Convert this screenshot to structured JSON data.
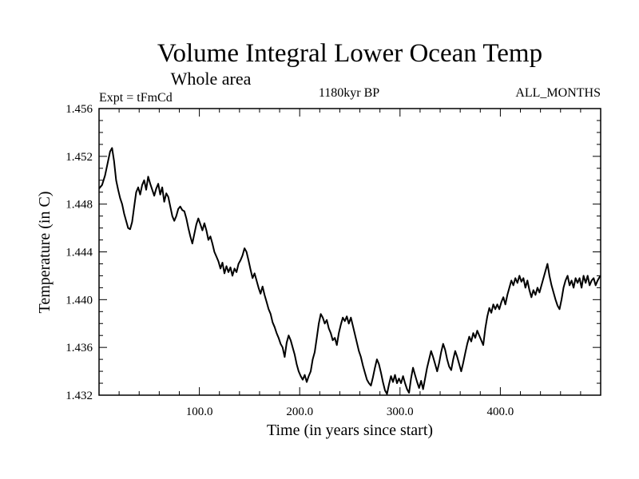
{
  "chart_data": {
    "type": "line",
    "title": "Volume Integral Lower Ocean Temp",
    "subtitle": "Whole area",
    "left_label": "Expt = tFmCd",
    "center_label": "1180kyr BP",
    "right_label": "ALL_MONTHS",
    "xlabel": "Time (in years since start)",
    "ylabel": "Temperature (in C)",
    "xlim": [
      0,
      500
    ],
    "ylim": [
      1.432,
      1.456
    ],
    "x_ticks": [
      {
        "value": 100,
        "label": "100.0"
      },
      {
        "value": 200,
        "label": "200.0"
      },
      {
        "value": 300,
        "label": "300.0"
      },
      {
        "value": 400,
        "label": "400.0"
      }
    ],
    "y_ticks": [
      {
        "value": 1.432,
        "label": "1.432"
      },
      {
        "value": 1.436,
        "label": "1.436"
      },
      {
        "value": 1.44,
        "label": "1.440"
      },
      {
        "value": 1.444,
        "label": "1.444"
      },
      {
        "value": 1.448,
        "label": "1.448"
      },
      {
        "value": 1.452,
        "label": "1.452"
      },
      {
        "value": 1.456,
        "label": "1.456"
      }
    ],
    "series": [
      {
        "name": "Lower Ocean Temp",
        "color": "#000000",
        "points": [
          [
            0,
            1.4493
          ],
          [
            3,
            1.4496
          ],
          [
            6,
            1.4504
          ],
          [
            9,
            1.4516
          ],
          [
            11,
            1.4524
          ],
          [
            13,
            1.4527
          ],
          [
            15,
            1.4516
          ],
          [
            17,
            1.45
          ],
          [
            19,
            1.4492
          ],
          [
            21,
            1.4485
          ],
          [
            23,
            1.448
          ],
          [
            25,
            1.4472
          ],
          [
            27,
            1.4466
          ],
          [
            29,
            1.446
          ],
          [
            31,
            1.4459
          ],
          [
            33,
            1.4465
          ],
          [
            35,
            1.4478
          ],
          [
            37,
            1.449
          ],
          [
            39,
            1.4494
          ],
          [
            41,
            1.4488
          ],
          [
            43,
            1.4496
          ],
          [
            45,
            1.45
          ],
          [
            47,
            1.4492
          ],
          [
            49,
            1.4503
          ],
          [
            51,
            1.4497
          ],
          [
            53,
            1.4492
          ],
          [
            55,
            1.4487
          ],
          [
            57,
            1.4493
          ],
          [
            59,
            1.4497
          ],
          [
            61,
            1.4488
          ],
          [
            63,
            1.4494
          ],
          [
            65,
            1.4482
          ],
          [
            67,
            1.4489
          ],
          [
            69,
            1.4486
          ],
          [
            71,
            1.4478
          ],
          [
            73,
            1.447
          ],
          [
            75,
            1.4466
          ],
          [
            77,
            1.447
          ],
          [
            79,
            1.4476
          ],
          [
            81,
            1.4478
          ],
          [
            83,
            1.4475
          ],
          [
            85,
            1.4474
          ],
          [
            87,
            1.4468
          ],
          [
            89,
            1.446
          ],
          [
            91,
            1.4453
          ],
          [
            93,
            1.4447
          ],
          [
            95,
            1.4455
          ],
          [
            97,
            1.4463
          ],
          [
            99,
            1.4468
          ],
          [
            101,
            1.4463
          ],
          [
            103,
            1.4458
          ],
          [
            105,
            1.4464
          ],
          [
            107,
            1.4458
          ],
          [
            109,
            1.445
          ],
          [
            111,
            1.4453
          ],
          [
            113,
            1.4447
          ],
          [
            115,
            1.444
          ],
          [
            117,
            1.4436
          ],
          [
            119,
            1.4432
          ],
          [
            121,
            1.4426
          ],
          [
            123,
            1.4431
          ],
          [
            125,
            1.4422
          ],
          [
            127,
            1.4428
          ],
          [
            129,
            1.4423
          ],
          [
            131,
            1.4427
          ],
          [
            133,
            1.442
          ],
          [
            135,
            1.4426
          ],
          [
            137,
            1.4423
          ],
          [
            139,
            1.443
          ],
          [
            141,
            1.4433
          ],
          [
            143,
            1.4437
          ],
          [
            145,
            1.4443
          ],
          [
            147,
            1.444
          ],
          [
            149,
            1.4433
          ],
          [
            151,
            1.4425
          ],
          [
            153,
            1.4418
          ],
          [
            155,
            1.4422
          ],
          [
            157,
            1.4416
          ],
          [
            159,
            1.441
          ],
          [
            161,
            1.4405
          ],
          [
            163,
            1.4411
          ],
          [
            165,
            1.4404
          ],
          [
            167,
            1.4398
          ],
          [
            169,
            1.4392
          ],
          [
            171,
            1.4388
          ],
          [
            173,
            1.4381
          ],
          [
            175,
            1.4377
          ],
          [
            177,
            1.4372
          ],
          [
            179,
            1.4368
          ],
          [
            181,
            1.4363
          ],
          [
            183,
            1.436
          ],
          [
            185,
            1.4352
          ],
          [
            187,
            1.4364
          ],
          [
            189,
            1.437
          ],
          [
            191,
            1.4366
          ],
          [
            193,
            1.436
          ],
          [
            195,
            1.4354
          ],
          [
            197,
            1.4346
          ],
          [
            199,
            1.434
          ],
          [
            201,
            1.4336
          ],
          [
            203,
            1.4333
          ],
          [
            205,
            1.4337
          ],
          [
            207,
            1.4331
          ],
          [
            209,
            1.4336
          ],
          [
            211,
            1.434
          ],
          [
            213,
            1.435
          ],
          [
            215,
            1.4356
          ],
          [
            217,
            1.4368
          ],
          [
            219,
            1.438
          ],
          [
            221,
            1.4388
          ],
          [
            223,
            1.4385
          ],
          [
            225,
            1.438
          ],
          [
            227,
            1.4383
          ],
          [
            229,
            1.4376
          ],
          [
            231,
            1.4372
          ],
          [
            233,
            1.4366
          ],
          [
            235,
            1.4368
          ],
          [
            237,
            1.4362
          ],
          [
            239,
            1.4372
          ],
          [
            241,
            1.4379
          ],
          [
            243,
            1.4385
          ],
          [
            245,
            1.4382
          ],
          [
            247,
            1.4386
          ],
          [
            249,
            1.438
          ],
          [
            251,
            1.4385
          ],
          [
            253,
            1.4378
          ],
          [
            255,
            1.4371
          ],
          [
            257,
            1.4364
          ],
          [
            259,
            1.4357
          ],
          [
            261,
            1.4352
          ],
          [
            263,
            1.4345
          ],
          [
            265,
            1.4339
          ],
          [
            267,
            1.4333
          ],
          [
            269,
            1.433
          ],
          [
            271,
            1.4328
          ],
          [
            273,
            1.4335
          ],
          [
            275,
            1.4343
          ],
          [
            277,
            1.435
          ],
          [
            279,
            1.4346
          ],
          [
            281,
            1.4339
          ],
          [
            283,
            1.4331
          ],
          [
            285,
            1.4324
          ],
          [
            287,
            1.4321
          ],
          [
            289,
            1.4329
          ],
          [
            291,
            1.4336
          ],
          [
            293,
            1.4331
          ],
          [
            295,
            1.4337
          ],
          [
            297,
            1.433
          ],
          [
            299,
            1.4334
          ],
          [
            301,
            1.433
          ],
          [
            303,
            1.4336
          ],
          [
            305,
            1.433
          ],
          [
            307,
            1.4325
          ],
          [
            309,
            1.4322
          ],
          [
            311,
            1.4334
          ],
          [
            313,
            1.4343
          ],
          [
            315,
            1.4337
          ],
          [
            317,
            1.4331
          ],
          [
            319,
            1.4326
          ],
          [
            321,
            1.4332
          ],
          [
            323,
            1.4325
          ],
          [
            325,
            1.4334
          ],
          [
            327,
            1.4343
          ],
          [
            329,
            1.435
          ],
          [
            331,
            1.4357
          ],
          [
            333,
            1.4352
          ],
          [
            335,
            1.4346
          ],
          [
            337,
            1.434
          ],
          [
            339,
            1.4347
          ],
          [
            341,
            1.4356
          ],
          [
            343,
            1.4363
          ],
          [
            345,
            1.4358
          ],
          [
            347,
            1.435
          ],
          [
            349,
            1.4344
          ],
          [
            351,
            1.4341
          ],
          [
            353,
            1.435
          ],
          [
            355,
            1.4357
          ],
          [
            357,
            1.4352
          ],
          [
            359,
            1.4346
          ],
          [
            361,
            1.434
          ],
          [
            363,
            1.4347
          ],
          [
            365,
            1.4355
          ],
          [
            367,
            1.4363
          ],
          [
            369,
            1.4369
          ],
          [
            371,
            1.4365
          ],
          [
            373,
            1.4372
          ],
          [
            375,
            1.4368
          ],
          [
            377,
            1.4374
          ],
          [
            379,
            1.437
          ],
          [
            381,
            1.4366
          ],
          [
            383,
            1.4362
          ],
          [
            385,
            1.4376
          ],
          [
            387,
            1.4386
          ],
          [
            389,
            1.4393
          ],
          [
            391,
            1.4389
          ],
          [
            393,
            1.4396
          ],
          [
            395,
            1.4392
          ],
          [
            397,
            1.4396
          ],
          [
            399,
            1.4392
          ],
          [
            401,
            1.4398
          ],
          [
            403,
            1.4402
          ],
          [
            405,
            1.4396
          ],
          [
            407,
            1.4404
          ],
          [
            409,
            1.441
          ],
          [
            411,
            1.4416
          ],
          [
            413,
            1.4412
          ],
          [
            415,
            1.4418
          ],
          [
            417,
            1.4414
          ],
          [
            419,
            1.442
          ],
          [
            421,
            1.4415
          ],
          [
            423,
            1.4418
          ],
          [
            425,
            1.441
          ],
          [
            427,
            1.4416
          ],
          [
            429,
            1.4408
          ],
          [
            431,
            1.4402
          ],
          [
            433,
            1.4408
          ],
          [
            435,
            1.4404
          ],
          [
            437,
            1.441
          ],
          [
            439,
            1.4406
          ],
          [
            441,
            1.4412
          ],
          [
            443,
            1.4418
          ],
          [
            445,
            1.4424
          ],
          [
            447,
            1.443
          ],
          [
            449,
            1.442
          ],
          [
            451,
            1.4412
          ],
          [
            453,
            1.4406
          ],
          [
            455,
            1.44
          ],
          [
            457,
            1.4395
          ],
          [
            459,
            1.4392
          ],
          [
            461,
            1.44
          ],
          [
            463,
            1.441
          ],
          [
            465,
            1.4416
          ],
          [
            467,
            1.442
          ],
          [
            469,
            1.4412
          ],
          [
            471,
            1.4416
          ],
          [
            473,
            1.441
          ],
          [
            475,
            1.4418
          ],
          [
            477,
            1.4414
          ],
          [
            479,
            1.4418
          ],
          [
            481,
            1.441
          ],
          [
            483,
            1.442
          ],
          [
            485,
            1.4414
          ],
          [
            487,
            1.442
          ],
          [
            489,
            1.4412
          ],
          [
            491,
            1.4416
          ],
          [
            493,
            1.4418
          ],
          [
            495,
            1.4412
          ],
          [
            497,
            1.4416
          ],
          [
            499,
            1.4419
          ],
          [
            500,
            1.442
          ]
        ]
      }
    ]
  }
}
